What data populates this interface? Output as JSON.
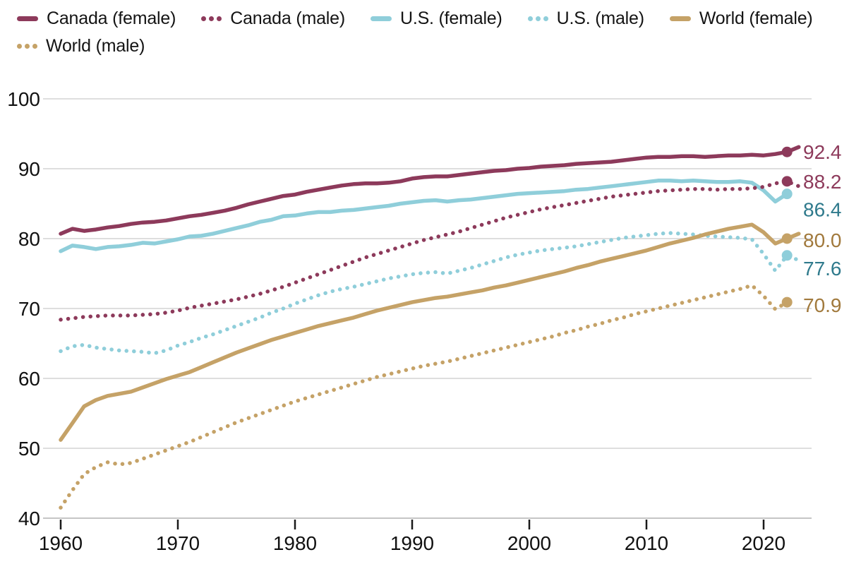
{
  "legend": {
    "rows": [
      [
        {
          "label": "Canada (female)",
          "series_id": "canada-female",
          "color": "#8D3A5B",
          "style": "solid"
        },
        {
          "label": "Canada (male)",
          "series_id": "canada-male",
          "color": "#8D3A5B",
          "style": "dotted"
        },
        {
          "label": "U.S. (female)",
          "series_id": "us-female",
          "color": "#8FCEDA",
          "style": "solid"
        },
        {
          "label": "U.S. (male)",
          "series_id": "us-male",
          "color": "#8FCEDA",
          "style": "dotted"
        },
        {
          "label": "World (female)",
          "series_id": "world-female",
          "color": "#C5A267",
          "style": "solid"
        }
      ],
      [
        {
          "label": "World (male)",
          "series_id": "world-male",
          "color": "#C5A267",
          "style": "dotted"
        }
      ]
    ]
  },
  "chart_data": {
    "type": "line",
    "x_axis": {
      "years": [
        1960,
        1970,
        1980,
        1990,
        2000,
        2010,
        2020
      ],
      "labels": [
        "1960",
        "1970",
        "1980",
        "1990",
        "2000",
        "2010",
        "2020"
      ],
      "range": [
        1960,
        2022
      ]
    },
    "y_axis": {
      "values": [
        40,
        50,
        60,
        70,
        80,
        90,
        100
      ],
      "labels": [
        "40",
        "50",
        "60",
        "70",
        "80",
        "90",
        "100"
      ],
      "range": [
        40,
        100
      ],
      "grid": true
    },
    "legend_position": "top",
    "start_year": 1960,
    "draw_order": [
      5,
      3,
      4,
      2,
      1,
      0
    ],
    "series": [
      {
        "id": "canada-female",
        "name": "Canada (female)",
        "style": "solid",
        "color": "#8D3A5B",
        "label_color": "#8D3A5B",
        "end_label": "92.4",
        "label_dy": 0,
        "stub": 93.1,
        "values": [
          80.7,
          81.4,
          81.1,
          81.3,
          81.6,
          81.8,
          82.1,
          82.3,
          82.4,
          82.6,
          82.9,
          83.2,
          83.4,
          83.7,
          84.0,
          84.4,
          84.9,
          85.3,
          85.7,
          86.1,
          86.3,
          86.7,
          87.0,
          87.3,
          87.6,
          87.8,
          87.9,
          87.9,
          88.0,
          88.2,
          88.6,
          88.8,
          88.9,
          88.9,
          89.1,
          89.3,
          89.5,
          89.7,
          89.8,
          90.0,
          90.1,
          90.3,
          90.4,
          90.5,
          90.7,
          90.8,
          90.9,
          91.0,
          91.2,
          91.4,
          91.6,
          91.7,
          91.7,
          91.8,
          91.8,
          91.7,
          91.8,
          91.9,
          91.9,
          92.0,
          91.9,
          92.1,
          92.4
        ]
      },
      {
        "id": "canada-male",
        "name": "Canada (male)",
        "style": "dotted",
        "color": "#8D3A5B",
        "label_color": "#8D3A5B",
        "end_label": "88.2",
        "label_dy": 0,
        "stub": 87.5,
        "values": [
          68.4,
          68.6,
          68.8,
          68.9,
          69.0,
          69.0,
          69.0,
          69.1,
          69.2,
          69.4,
          69.7,
          70.1,
          70.4,
          70.7,
          71.0,
          71.3,
          71.7,
          72.1,
          72.6,
          73.1,
          73.7,
          74.3,
          74.9,
          75.5,
          76.1,
          76.7,
          77.3,
          77.8,
          78.3,
          78.8,
          79.3,
          79.8,
          80.2,
          80.6,
          81.0,
          81.5,
          82.0,
          82.5,
          83.0,
          83.4,
          83.8,
          84.2,
          84.5,
          84.8,
          85.1,
          85.4,
          85.7,
          86.0,
          86.2,
          86.4,
          86.6,
          86.8,
          86.9,
          87.0,
          87.1,
          87.1,
          87.0,
          87.1,
          87.1,
          87.2,
          87.4,
          87.9,
          88.2
        ]
      },
      {
        "id": "us-female",
        "name": "U.S. (female)",
        "style": "solid",
        "color": "#8FCEDA",
        "label_color": "#2F7A8C",
        "end_label": "86.4",
        "label_dy": 22,
        "stub": null,
        "values": [
          78.2,
          79.0,
          78.8,
          78.5,
          78.8,
          78.9,
          79.1,
          79.4,
          79.3,
          79.6,
          79.9,
          80.3,
          80.4,
          80.7,
          81.1,
          81.5,
          81.9,
          82.4,
          82.7,
          83.2,
          83.3,
          83.6,
          83.8,
          83.8,
          84.0,
          84.1,
          84.3,
          84.5,
          84.7,
          85.0,
          85.2,
          85.4,
          85.5,
          85.3,
          85.5,
          85.6,
          85.8,
          86.0,
          86.2,
          86.4,
          86.5,
          86.6,
          86.7,
          86.8,
          87.0,
          87.1,
          87.3,
          87.5,
          87.7,
          87.9,
          88.1,
          88.3,
          88.3,
          88.2,
          88.3,
          88.2,
          88.1,
          88.1,
          88.2,
          88.0,
          86.9,
          85.3,
          86.4
        ]
      },
      {
        "id": "us-male",
        "name": "U.S. (male)",
        "style": "dotted",
        "color": "#8FCEDA",
        "label_color": "#2F7A8C",
        "end_label": "77.6",
        "label_dy": 18,
        "stub": 76.9,
        "values": [
          63.9,
          64.6,
          64.8,
          64.4,
          64.2,
          64.0,
          63.9,
          63.8,
          63.6,
          64.0,
          64.7,
          65.2,
          65.8,
          66.3,
          66.9,
          67.5,
          68.1,
          68.7,
          69.4,
          70.0,
          70.7,
          71.3,
          71.9,
          72.4,
          72.8,
          73.1,
          73.5,
          73.9,
          74.3,
          74.6,
          74.9,
          75.1,
          75.2,
          75.0,
          75.4,
          75.8,
          76.3,
          76.8,
          77.3,
          77.7,
          78.0,
          78.3,
          78.5,
          78.7,
          78.9,
          79.2,
          79.5,
          79.8,
          80.1,
          80.3,
          80.5,
          80.7,
          80.8,
          80.7,
          80.6,
          80.4,
          80.3,
          80.2,
          80.1,
          79.9,
          77.8,
          75.4,
          77.6
        ]
      },
      {
        "id": "world-female",
        "name": "World (female)",
        "style": "solid",
        "color": "#C5A267",
        "label_color": "#A1793C",
        "end_label": "80.0",
        "label_dy": 2,
        "stub": 80.7,
        "values": [
          51.2,
          53.6,
          56.0,
          56.9,
          57.5,
          57.8,
          58.1,
          58.7,
          59.3,
          59.9,
          60.4,
          60.9,
          61.6,
          62.3,
          63.0,
          63.7,
          64.3,
          64.9,
          65.5,
          66.0,
          66.5,
          67.0,
          67.5,
          67.9,
          68.3,
          68.7,
          69.2,
          69.7,
          70.1,
          70.5,
          70.9,
          71.2,
          71.5,
          71.7,
          72.0,
          72.3,
          72.6,
          73.0,
          73.3,
          73.7,
          74.1,
          74.5,
          74.9,
          75.3,
          75.8,
          76.2,
          76.7,
          77.1,
          77.5,
          77.9,
          78.3,
          78.8,
          79.3,
          79.7,
          80.1,
          80.6,
          81.0,
          81.4,
          81.7,
          82.0,
          80.9,
          79.3,
          80.0
        ]
      },
      {
        "id": "world-male",
        "name": "World (male)",
        "style": "dotted",
        "color": "#C5A267",
        "label_color": "#A1793C",
        "end_label": "70.9",
        "label_dy": 4,
        "stub": null,
        "values": [
          41.5,
          44.0,
          46.3,
          47.3,
          48.0,
          47.7,
          47.9,
          48.5,
          49.1,
          49.7,
          50.3,
          50.9,
          51.6,
          52.3,
          53.0,
          53.7,
          54.3,
          54.9,
          55.5,
          56.1,
          56.7,
          57.2,
          57.7,
          58.2,
          58.7,
          59.2,
          59.7,
          60.2,
          60.6,
          61.0,
          61.4,
          61.8,
          62.1,
          62.4,
          62.8,
          63.2,
          63.6,
          64.0,
          64.4,
          64.8,
          65.2,
          65.6,
          66.0,
          66.5,
          66.9,
          67.4,
          67.8,
          68.3,
          68.7,
          69.2,
          69.6,
          70.0,
          70.4,
          70.8,
          71.2,
          71.6,
          72.0,
          72.4,
          72.8,
          73.3,
          71.8,
          69.9,
          70.9
        ]
      }
    ]
  }
}
